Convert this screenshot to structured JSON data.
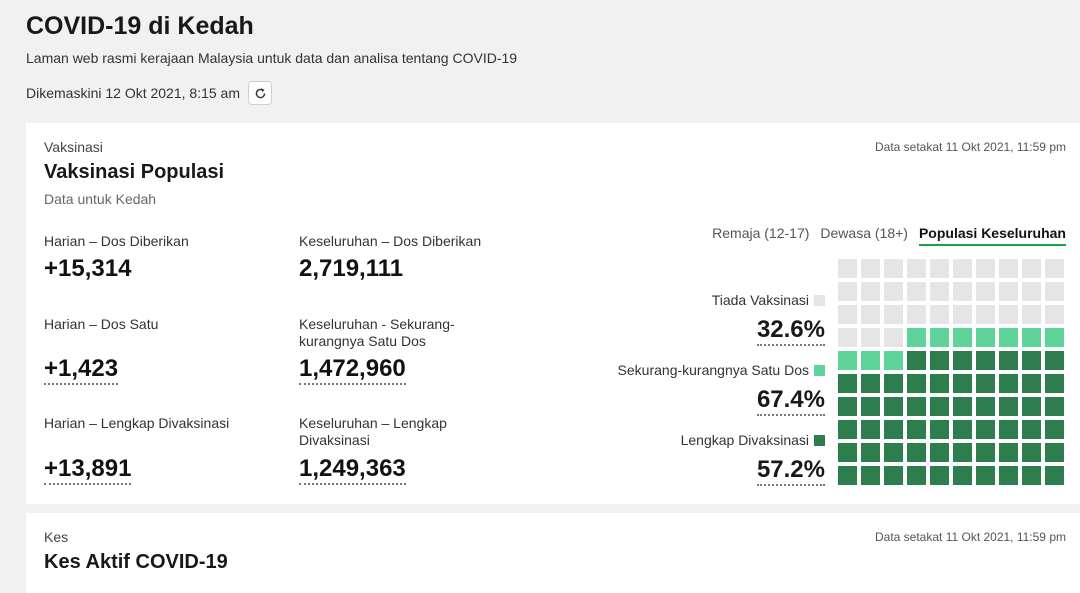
{
  "header": {
    "title": "COVID-19 di Kedah",
    "subtitle": "Laman web rasmi kerajaan Malaysia untuk data dan analisa tentang COVID-19",
    "updated": "Dikemaskini 12 Okt 2021, 8:15 am"
  },
  "vaccination": {
    "section_label": "Vaksinasi",
    "title": "Vaksinasi Populasi",
    "subtitle": "Data untuk Kedah",
    "data_date": "Data setakat 11 Okt 2021, 11:59 pm",
    "stats": [
      {
        "label": "Harian – Dos Diberikan",
        "value": "+15,314"
      },
      {
        "label": "Keseluruhan – Dos Diberikan",
        "value": "2,719,111"
      },
      {
        "label": "Harian – Dos Satu",
        "value": "+1,423"
      },
      {
        "label": "Keseluruhan - Sekurang-kurangnya Satu Dos",
        "value": "1,472,960"
      },
      {
        "label": "Harian – Lengkap Divaksinasi",
        "value": "+13,891"
      },
      {
        "label": "Keseluruhan – Lengkap Divaksinasi",
        "value": "1,249,363"
      }
    ],
    "tabs": [
      {
        "label": "Remaja (12-17)",
        "active": false
      },
      {
        "label": "Dewasa (18+)",
        "active": false
      },
      {
        "label": "Populasi Keseluruhan",
        "active": true
      }
    ],
    "legend": [
      {
        "label": "Tiada Vaksinasi",
        "percent": "32.6%",
        "color": "#e5e5e5"
      },
      {
        "label": "Sekurang-kurangnya Satu Dos",
        "percent": "67.4%",
        "color": "#5fd49a"
      },
      {
        "label": "Lengkap Divaksinasi",
        "percent": "57.2%",
        "color": "#2e7d4f"
      }
    ],
    "waffle": {
      "none_pct": 32.6,
      "at_least_one_dose_pct": 67.4,
      "fully_vaccinated_pct": 57.2
    }
  },
  "cases": {
    "section_label": "Kes",
    "title": "Kes Aktif COVID-19",
    "data_date": "Data setakat 11 Okt 2021, 11:59 pm"
  }
}
